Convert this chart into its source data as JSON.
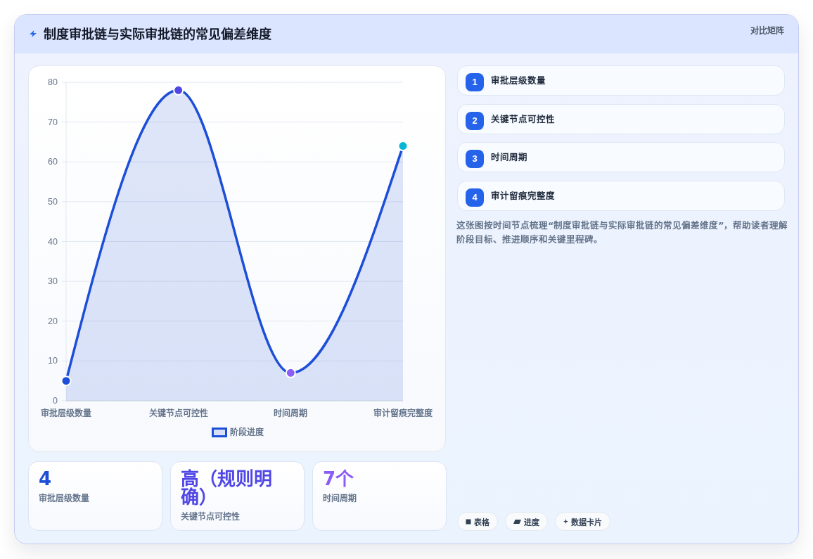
{
  "chart_data": [
    {
      "type": "area",
      "title": "制度审批链与实际审批链的常见偏差维度",
      "annotations": [
        "对比矩阵"
      ],
      "categories": [
        "审批层级数量",
        "关键节点可控性",
        "时间周期",
        "审计留痕完整度"
      ],
      "series": [
        {
          "name": "阶段进度",
          "color": "#1d4ed8",
          "colors": [
            "#1d4ed8",
            "#4f46e5",
            "#8b5cf6",
            "#06b6d4"
          ],
          "values": [
            5,
            78,
            7,
            64
          ]
        }
      ],
      "ylim": [
        0,
        80
      ],
      "yticks": [
        0,
        10,
        20,
        30,
        40,
        50,
        60,
        70,
        80
      ],
      "grid": "y",
      "legend": "bottom",
      "marker": "circle"
    },
    {
      "type": "other",
      "categories": [
        "审批层级数量",
        "关键节点可控性",
        "时间周期",
        "审计留痕完整度"
      ],
      "values": [
        1,
        2,
        3,
        4
      ],
      "data_labels": true,
      "annotations": [
        "这张图按时间节点梳理“制度审批链与实际审批链的常见偏差维度”，帮助读者理解阶段目标、推进顺序和关键里程碑。",
        "表格",
        "进度",
        "数据卡片"
      ]
    },
    {
      "type": "other",
      "annotations": [
        "4",
        "审批层级数量",
        "高（规则明确）",
        "关键节点可控性",
        "7个",
        "时间周期"
      ]
    }
  ]
}
